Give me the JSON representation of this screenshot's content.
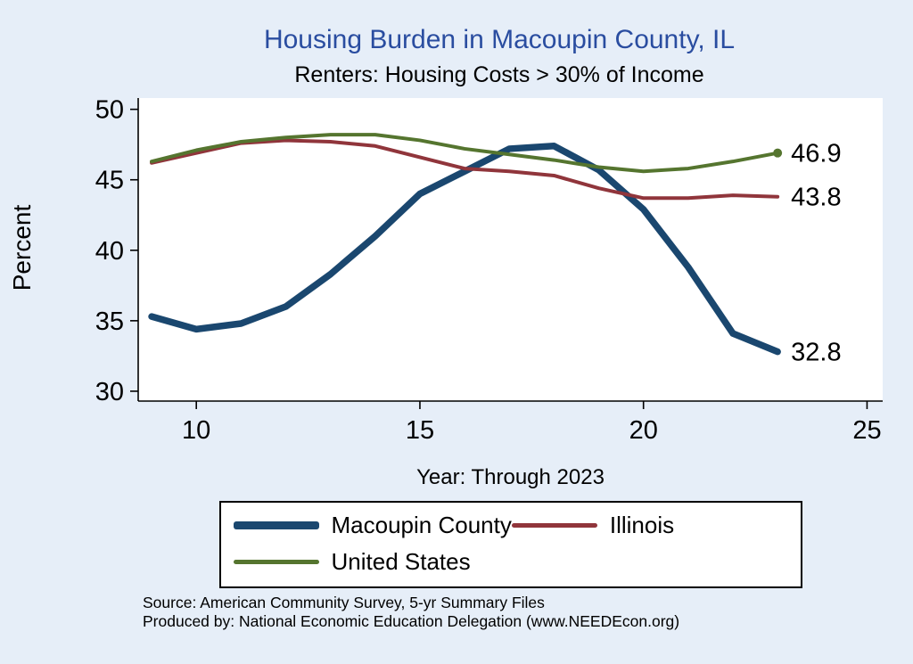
{
  "page": {
    "title": "Housing Burden in Macoupin County, IL",
    "subtitle": "Renters: Housing Costs > 30% of Income",
    "ylabel": "Percent",
    "xlabel": "Year: Through 2023",
    "source_line1": "Source: American Community Survey, 5-yr Summary Files",
    "source_line2": "Produced by: National Economic Education Delegation (www.NEEDEcon.org)"
  },
  "colors": {
    "background": "#e6eef8",
    "title": "#2a4da0",
    "macoupin": "#1A476F",
    "illinois": "#90353B",
    "united_states": "#55752F",
    "axis": "#000000",
    "plot_background": "#ffffff"
  },
  "legend": {
    "items": [
      {
        "label": "Macoupin County",
        "color": "#1A476F",
        "thickness": 9
      },
      {
        "label": "Illinois",
        "color": "#90353B",
        "thickness": 5
      },
      {
        "label": "United States",
        "color": "#55752F",
        "thickness": 5
      }
    ]
  },
  "chart_data": {
    "type": "line",
    "title": "Housing Burden in Macoupin County, IL",
    "subtitle": "Renters: Housing Costs > 30% of Income",
    "xlabel": "Year: Through 2023",
    "ylabel": "Percent",
    "x": [
      9,
      10,
      11,
      12,
      13,
      14,
      15,
      16,
      17,
      18,
      19,
      20,
      21,
      22,
      23
    ],
    "x_ticks": [
      10,
      15,
      20,
      25
    ],
    "y_ticks": [
      30,
      35,
      40,
      45,
      50
    ],
    "xlim": [
      8.7,
      25.35
    ],
    "ylim": [
      29.3,
      50.8
    ],
    "grid": false,
    "legend_position": "bottom",
    "series": [
      {
        "name": "Macoupin County",
        "color": "#1A476F",
        "width": 7.5,
        "marker_last": false,
        "values": [
          35.3,
          34.4,
          34.8,
          36.0,
          38.3,
          41.0,
          44.0,
          45.6,
          47.2,
          47.4,
          45.7,
          42.9,
          38.8,
          34.1,
          32.8
        ]
      },
      {
        "name": "Illinois",
        "color": "#90353B",
        "width": 4,
        "marker_last": false,
        "values": [
          46.2,
          46.9,
          47.6,
          47.8,
          47.7,
          47.4,
          46.6,
          45.8,
          45.6,
          45.3,
          44.4,
          43.7,
          43.7,
          43.9,
          43.8
        ]
      },
      {
        "name": "United States",
        "color": "#55752F",
        "width": 4,
        "marker_last": true,
        "values": [
          46.3,
          47.1,
          47.7,
          48.0,
          48.2,
          48.2,
          47.8,
          47.2,
          46.8,
          46.4,
          45.9,
          45.6,
          45.8,
          46.3,
          46.9
        ]
      }
    ],
    "end_labels": [
      {
        "x": 23,
        "y": 46.9,
        "text": "46.9"
      },
      {
        "x": 23,
        "y": 43.8,
        "text": "43.8"
      },
      {
        "x": 23,
        "y": 32.8,
        "text": "32.8"
      }
    ]
  }
}
